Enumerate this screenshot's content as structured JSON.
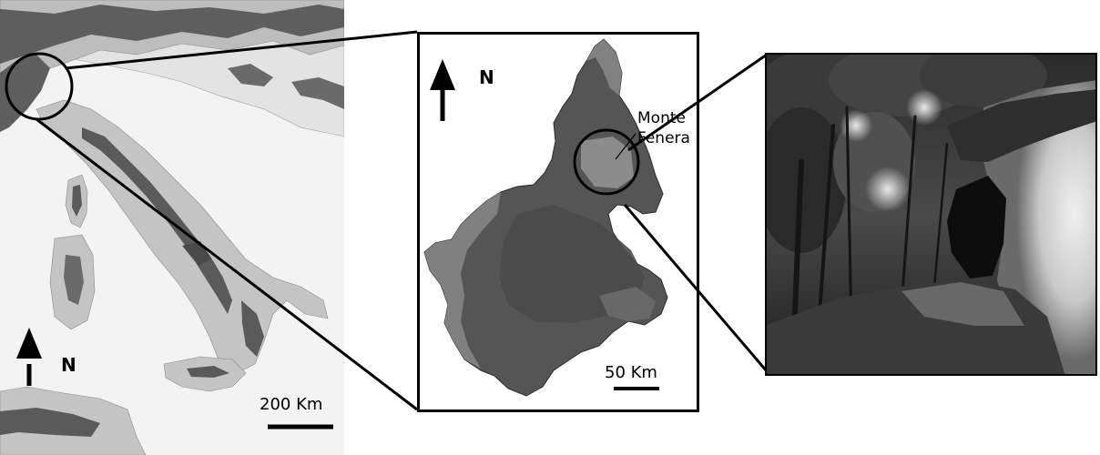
{
  "left_map": {
    "north_label": "N",
    "scale_label": "200 Km"
  },
  "middle_map": {
    "north_label": "N",
    "scale_label": "50 Km",
    "site_label_line1": "Monte",
    "site_label_line2": "Fenera"
  },
  "colors": {
    "sea": "#f2f2f2",
    "lowland": "#e6e6e6",
    "hill": "#bdbdbd",
    "mountain": "#5a5a5a",
    "frame": "#000000"
  }
}
